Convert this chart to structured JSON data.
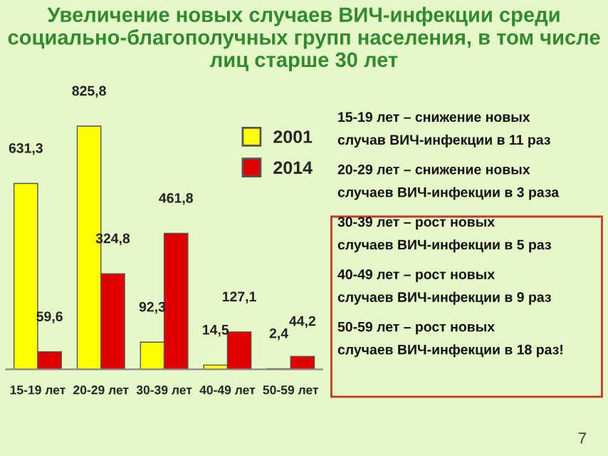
{
  "chart_data": {
    "type": "bar",
    "title": "Увеличение новых случаев ВИЧ-инфекции среди социально-благополучных групп населения, в том числе лиц старше 30 лет",
    "categories": [
      "15-19 лет",
      "20-29 лет",
      "30-39 лет",
      "40-49 лет",
      "50-59 лет"
    ],
    "series": [
      {
        "name": "2001",
        "color": "#ffff00",
        "values": [
          631.3,
          825.8,
          92.3,
          14.5,
          2.4
        ],
        "value_labels": [
          "631,3",
          "825,8",
          "92,3",
          "14,5",
          "2,4"
        ]
      },
      {
        "name": "2014",
        "color": "#e00000",
        "values": [
          59.6,
          324.8,
          461.8,
          127.1,
          44.2
        ],
        "value_labels": [
          "59,6",
          "324,8",
          "461,8",
          "127,1",
          "44,2"
        ]
      }
    ],
    "legend": "top right",
    "grid": false,
    "annotations": [
      "15-19 лет – снижение новых",
      "случав ВИЧ-инфекции в 11 раз",
      "20-29 лет – снижение новых",
      "случаев ВИЧ-инфекции в 3 раза",
      "30-39 лет – рост новых",
      "случаев ВИЧ-инфекции в 5 раз",
      "40-49 лет – рост новых",
      "случаев ВИЧ-инфекции в 9 раз",
      "50-59 лет – рост новых",
      "случаев ВИЧ-инфекции в 18 раз!",
      "7"
    ]
  }
}
